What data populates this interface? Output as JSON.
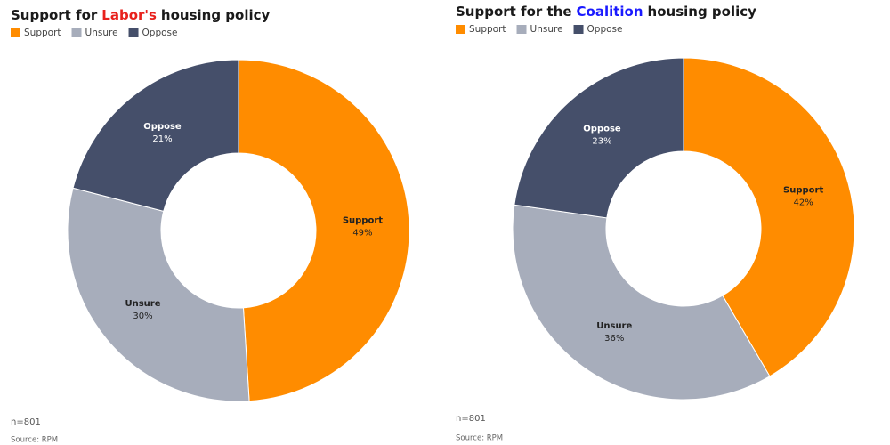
{
  "chart_data": [
    {
      "type": "donut",
      "title": [
        "Support for",
        "Labor's",
        "housing policy"
      ],
      "title_highlight_color": "#e8211c",
      "categories": [
        "Support",
        "Unsure",
        "Oppose"
      ],
      "values": [
        49,
        30,
        21
      ],
      "value_labels": [
        "49%",
        "30%",
        "21%"
      ],
      "colors": [
        "#ff8c00",
        "#a7adbb",
        "#454f6a"
      ],
      "legend": "top-left",
      "note": "n=801",
      "source": "Source: RPM"
    },
    {
      "type": "donut",
      "title": [
        "Support for the",
        "Coalition",
        "housing policy"
      ],
      "title_highlight_color": "#1a1aff",
      "categories": [
        "Support",
        "Unsure",
        "Oppose"
      ],
      "values": [
        42,
        36,
        23
      ],
      "value_labels": [
        "42%",
        "36%",
        "23%"
      ],
      "colors": [
        "#ff8c00",
        "#a7adbb",
        "#454f6a"
      ],
      "legend": "top-left",
      "note": "n=801",
      "source": "Source: RPM"
    }
  ]
}
